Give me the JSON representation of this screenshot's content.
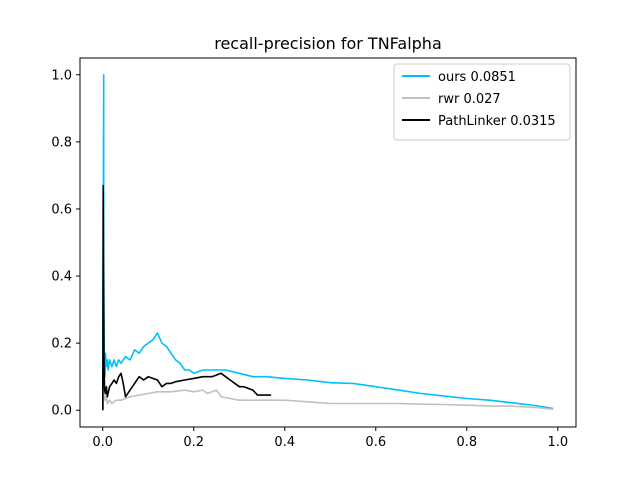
{
  "chart_data": {
    "type": "line",
    "title": "recall-precision for TNFalpha",
    "xlabel": "",
    "ylabel": "",
    "xlim": [
      -0.05,
      1.04
    ],
    "ylim": [
      -0.05,
      1.05
    ],
    "xticks": [
      0.0,
      0.2,
      0.4,
      0.6,
      0.8,
      1.0
    ],
    "xtick_labels": [
      "0.0",
      "0.2",
      "0.4",
      "0.6",
      "0.8",
      "1.0"
    ],
    "yticks": [
      0.0,
      0.2,
      0.4,
      0.6,
      0.8,
      1.0
    ],
    "ytick_labels": [
      "0.0",
      "0.2",
      "0.4",
      "0.6",
      "0.8",
      "1.0"
    ],
    "grid": false,
    "legend_position": "top-right",
    "series": [
      {
        "name": "ours 0.0851",
        "color": "#00bfff",
        "x": [
          0.0,
          0.002,
          0.002,
          0.003,
          0.003,
          0.004,
          0.005,
          0.006,
          0.008,
          0.01,
          0.012,
          0.015,
          0.02,
          0.025,
          0.03,
          0.035,
          0.04,
          0.05,
          0.06,
          0.07,
          0.08,
          0.09,
          0.1,
          0.11,
          0.12,
          0.13,
          0.14,
          0.15,
          0.16,
          0.17,
          0.18,
          0.19,
          0.2,
          0.22,
          0.25,
          0.27,
          0.3,
          0.33,
          0.36,
          0.4,
          0.45,
          0.5,
          0.55,
          0.6,
          0.65,
          0.7,
          0.75,
          0.8,
          0.85,
          0.9,
          0.95,
          0.99
        ],
        "y": [
          0.0,
          1.0,
          0.45,
          0.25,
          0.12,
          0.16,
          0.1,
          0.17,
          0.13,
          0.15,
          0.12,
          0.15,
          0.13,
          0.15,
          0.13,
          0.15,
          0.14,
          0.16,
          0.15,
          0.18,
          0.17,
          0.19,
          0.2,
          0.21,
          0.23,
          0.2,
          0.19,
          0.17,
          0.15,
          0.14,
          0.12,
          0.12,
          0.11,
          0.12,
          0.12,
          0.12,
          0.11,
          0.1,
          0.1,
          0.095,
          0.09,
          0.082,
          0.08,
          0.07,
          0.06,
          0.05,
          0.042,
          0.035,
          0.03,
          0.022,
          0.014,
          0.005
        ]
      },
      {
        "name": "rwr 0.027",
        "color": "#c0c0c0",
        "x": [
          0.0,
          0.003,
          0.005,
          0.008,
          0.01,
          0.015,
          0.02,
          0.03,
          0.04,
          0.05,
          0.06,
          0.08,
          0.1,
          0.12,
          0.15,
          0.18,
          0.2,
          0.22,
          0.23,
          0.25,
          0.26,
          0.28,
          0.3,
          0.35,
          0.4,
          0.45,
          0.5,
          0.55,
          0.6,
          0.65,
          0.7,
          0.75,
          0.8,
          0.85,
          0.9,
          0.95,
          0.99
        ],
        "y": [
          0.0,
          0.06,
          0.03,
          0.04,
          0.02,
          0.03,
          0.02,
          0.03,
          0.03,
          0.035,
          0.04,
          0.045,
          0.05,
          0.055,
          0.055,
          0.06,
          0.055,
          0.06,
          0.05,
          0.06,
          0.04,
          0.035,
          0.03,
          0.03,
          0.03,
          0.025,
          0.02,
          0.02,
          0.02,
          0.02,
          0.018,
          0.017,
          0.015,
          0.013,
          0.012,
          0.008,
          0.003
        ]
      },
      {
        "name": "PathLinker 0.0315",
        "color": "#000000",
        "x": [
          0.0,
          0.001,
          0.002,
          0.003,
          0.004,
          0.006,
          0.008,
          0.01,
          0.015,
          0.02,
          0.025,
          0.03,
          0.035,
          0.04,
          0.045,
          0.05,
          0.06,
          0.07,
          0.08,
          0.09,
          0.1,
          0.12,
          0.13,
          0.14,
          0.15,
          0.16,
          0.18,
          0.2,
          0.22,
          0.24,
          0.26,
          0.27,
          0.28,
          0.3,
          0.31,
          0.33,
          0.34,
          0.35,
          0.37
        ],
        "y": [
          0.0,
          0.67,
          0.3,
          0.12,
          0.06,
          0.05,
          0.07,
          0.04,
          0.07,
          0.08,
          0.09,
          0.08,
          0.1,
          0.11,
          0.08,
          0.04,
          0.06,
          0.08,
          0.1,
          0.09,
          0.1,
          0.09,
          0.07,
          0.08,
          0.08,
          0.085,
          0.09,
          0.095,
          0.1,
          0.1,
          0.11,
          0.1,
          0.09,
          0.07,
          0.07,
          0.06,
          0.045,
          0.045,
          0.045
        ]
      }
    ]
  }
}
